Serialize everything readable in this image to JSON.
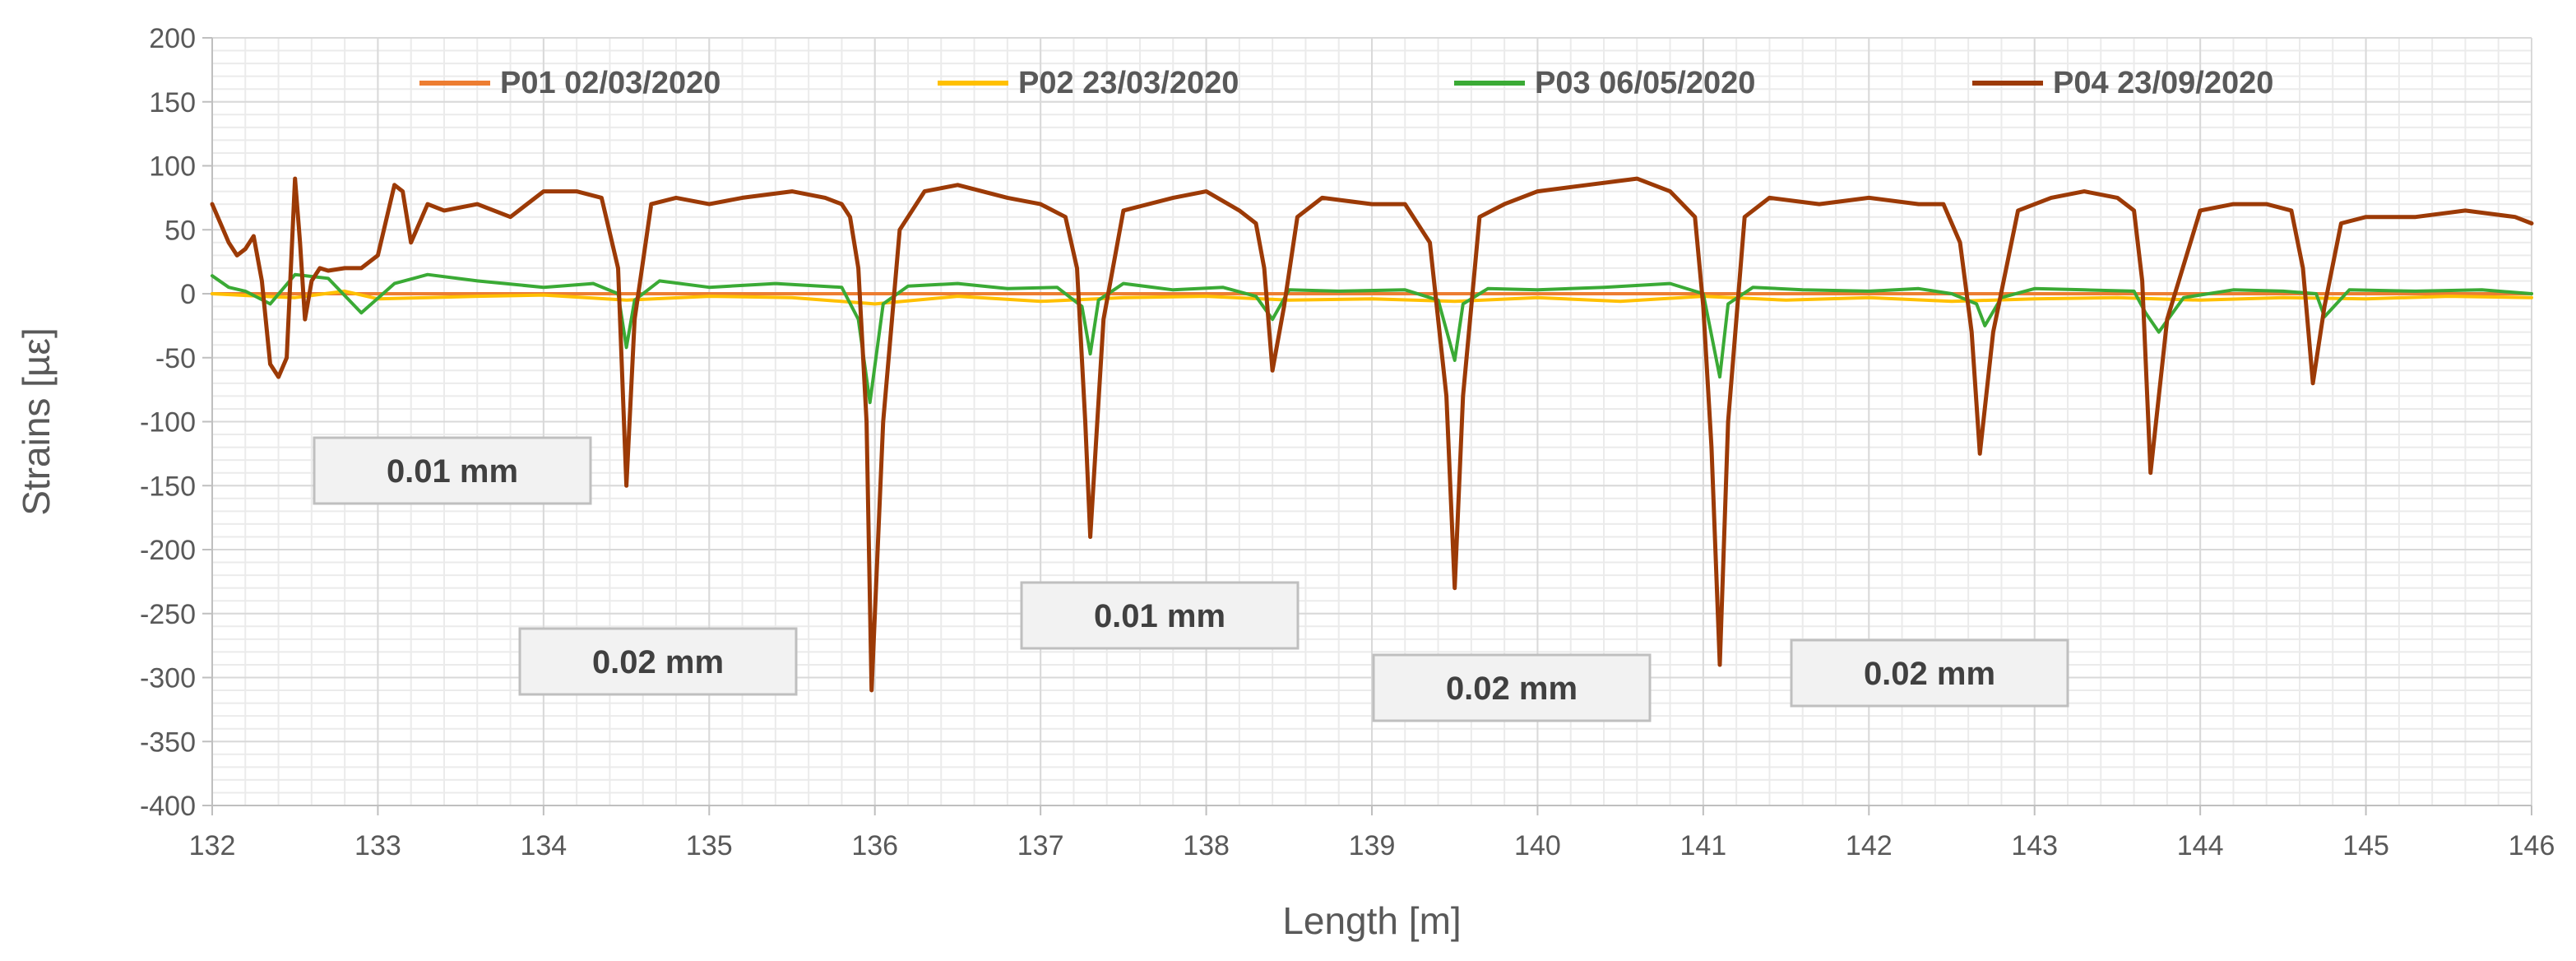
{
  "chart_data": {
    "type": "line",
    "xlabel": "Length [m]",
    "ylabel": "Strains [µε]",
    "xlim": [
      132,
      146
    ],
    "ylim": [
      -400,
      200
    ],
    "x_ticks": [
      "132",
      "133",
      "134",
      "135",
      "136",
      "137",
      "138",
      "139",
      "140",
      "141",
      "142",
      "143",
      "144",
      "145",
      "146"
    ],
    "y_ticks": [
      "200",
      "150",
      "100",
      "50",
      "0",
      "-50",
      "-100",
      "-150",
      "-200",
      "-250",
      "-300",
      "-350",
      "-400"
    ],
    "grid": true,
    "legend_position": "top",
    "series": [
      {
        "name": "P01 02/03/2020",
        "color": "#ED7D31",
        "x": [
          132,
          146
        ],
        "y": [
          0,
          0
        ]
      },
      {
        "name": "P02 23/03/2020",
        "color": "#FFC000",
        "x": [
          132.0,
          132.3,
          132.5,
          132.8,
          133.0,
          133.3,
          133.6,
          134.0,
          134.5,
          135.0,
          135.5,
          136.0,
          136.5,
          137.0,
          137.5,
          138.0,
          138.5,
          139.0,
          139.5,
          140.0,
          140.5,
          141.0,
          141.5,
          142.0,
          142.5,
          143.0,
          143.5,
          144.0,
          144.5,
          145.0,
          145.5,
          146.0
        ],
        "y": [
          0,
          -2,
          -3,
          2,
          -4,
          -3,
          -2,
          -1,
          -5,
          -2,
          -3,
          -8,
          -2,
          -6,
          -3,
          -2,
          -5,
          -4,
          -6,
          -3,
          -6,
          -2,
          -5,
          -3,
          -6,
          -4,
          -3,
          -5,
          -3,
          -4,
          -2,
          -3
        ]
      },
      {
        "name": "P03 06/05/2020",
        "color": "#3AAA35",
        "x": [
          132.0,
          132.1,
          132.2,
          132.35,
          132.5,
          132.7,
          132.9,
          133.1,
          133.3,
          133.6,
          134.0,
          134.3,
          134.45,
          134.5,
          134.55,
          134.7,
          135.0,
          135.4,
          135.8,
          135.9,
          135.97,
          136.05,
          136.2,
          136.5,
          136.8,
          137.1,
          137.25,
          137.3,
          137.35,
          137.5,
          137.8,
          138.1,
          138.3,
          138.4,
          138.5,
          138.8,
          139.2,
          139.4,
          139.5,
          139.55,
          139.7,
          140.0,
          140.4,
          140.8,
          141.0,
          141.1,
          141.15,
          141.3,
          141.6,
          142.0,
          142.3,
          142.5,
          142.65,
          142.7,
          142.8,
          143.0,
          143.3,
          143.6,
          143.67,
          143.75,
          143.9,
          144.2,
          144.5,
          144.7,
          144.75,
          144.9,
          145.3,
          145.7,
          146.0
        ],
        "y": [
          14,
          5,
          2,
          -8,
          15,
          12,
          -15,
          8,
          15,
          10,
          5,
          8,
          0,
          -42,
          -5,
          10,
          5,
          8,
          5,
          -20,
          -85,
          -8,
          6,
          8,
          4,
          5,
          -10,
          -47,
          -5,
          8,
          3,
          5,
          -2,
          -20,
          3,
          2,
          3,
          -5,
          -52,
          -8,
          4,
          3,
          5,
          8,
          0,
          -65,
          -8,
          5,
          3,
          2,
          4,
          0,
          -8,
          -25,
          -3,
          4,
          3,
          2,
          -15,
          -30,
          -3,
          3,
          2,
          0,
          -18,
          3,
          2,
          3,
          0
        ]
      },
      {
        "name": "P04 23/09/2020",
        "color": "#9C3A06",
        "x": [
          132.0,
          132.05,
          132.1,
          132.15,
          132.2,
          132.25,
          132.3,
          132.35,
          132.4,
          132.45,
          132.5,
          132.53,
          132.56,
          132.6,
          132.65,
          132.7,
          132.8,
          132.9,
          133.0,
          133.1,
          133.15,
          133.2,
          133.3,
          133.4,
          133.6,
          133.8,
          134.0,
          134.2,
          134.35,
          134.45,
          134.5,
          134.55,
          134.65,
          134.8,
          135.0,
          135.2,
          135.5,
          135.7,
          135.8,
          135.85,
          135.9,
          135.95,
          135.98,
          136.05,
          136.15,
          136.3,
          136.5,
          136.8,
          137.0,
          137.15,
          137.22,
          137.27,
          137.3,
          137.38,
          137.5,
          137.8,
          138.0,
          138.2,
          138.3,
          138.35,
          138.4,
          138.47,
          138.55,
          138.7,
          139.0,
          139.2,
          139.35,
          139.45,
          139.5,
          139.55,
          139.65,
          139.8,
          140.0,
          140.3,
          140.6,
          140.8,
          140.95,
          141.0,
          141.05,
          141.1,
          141.15,
          141.25,
          141.4,
          141.7,
          142.0,
          142.3,
          142.45,
          142.55,
          142.62,
          142.67,
          142.75,
          142.9,
          143.1,
          143.3,
          143.5,
          143.6,
          143.65,
          143.7,
          143.8,
          144.0,
          144.2,
          144.4,
          144.55,
          144.62,
          144.68,
          144.75,
          144.85,
          145.0,
          145.3,
          145.6,
          145.9,
          146.0
        ],
        "y": [
          70,
          55,
          40,
          30,
          35,
          45,
          10,
          -55,
          -65,
          -50,
          90,
          40,
          -20,
          10,
          20,
          18,
          20,
          20,
          30,
          85,
          80,
          40,
          70,
          65,
          70,
          60,
          80,
          80,
          75,
          20,
          -150,
          -20,
          70,
          75,
          70,
          75,
          80,
          75,
          70,
          60,
          20,
          -100,
          -310,
          -100,
          50,
          80,
          85,
          75,
          70,
          60,
          20,
          -100,
          -190,
          -20,
          65,
          75,
          80,
          65,
          55,
          20,
          -60,
          -10,
          60,
          75,
          70,
          70,
          40,
          -80,
          -230,
          -80,
          60,
          70,
          80,
          85,
          90,
          80,
          60,
          -10,
          -120,
          -290,
          -100,
          60,
          75,
          70,
          75,
          70,
          70,
          40,
          -30,
          -125,
          -30,
          65,
          75,
          80,
          75,
          65,
          10,
          -140,
          -20,
          65,
          70,
          70,
          65,
          20,
          -70,
          -10,
          55,
          60,
          60,
          65,
          60,
          55
        ]
      }
    ],
    "annotations": [
      {
        "text": "0.01 mm"
      },
      {
        "text": "0.02 mm"
      },
      {
        "text": "0.01 mm"
      },
      {
        "text": "0.02 mm"
      },
      {
        "text": "0.02 mm"
      }
    ]
  }
}
